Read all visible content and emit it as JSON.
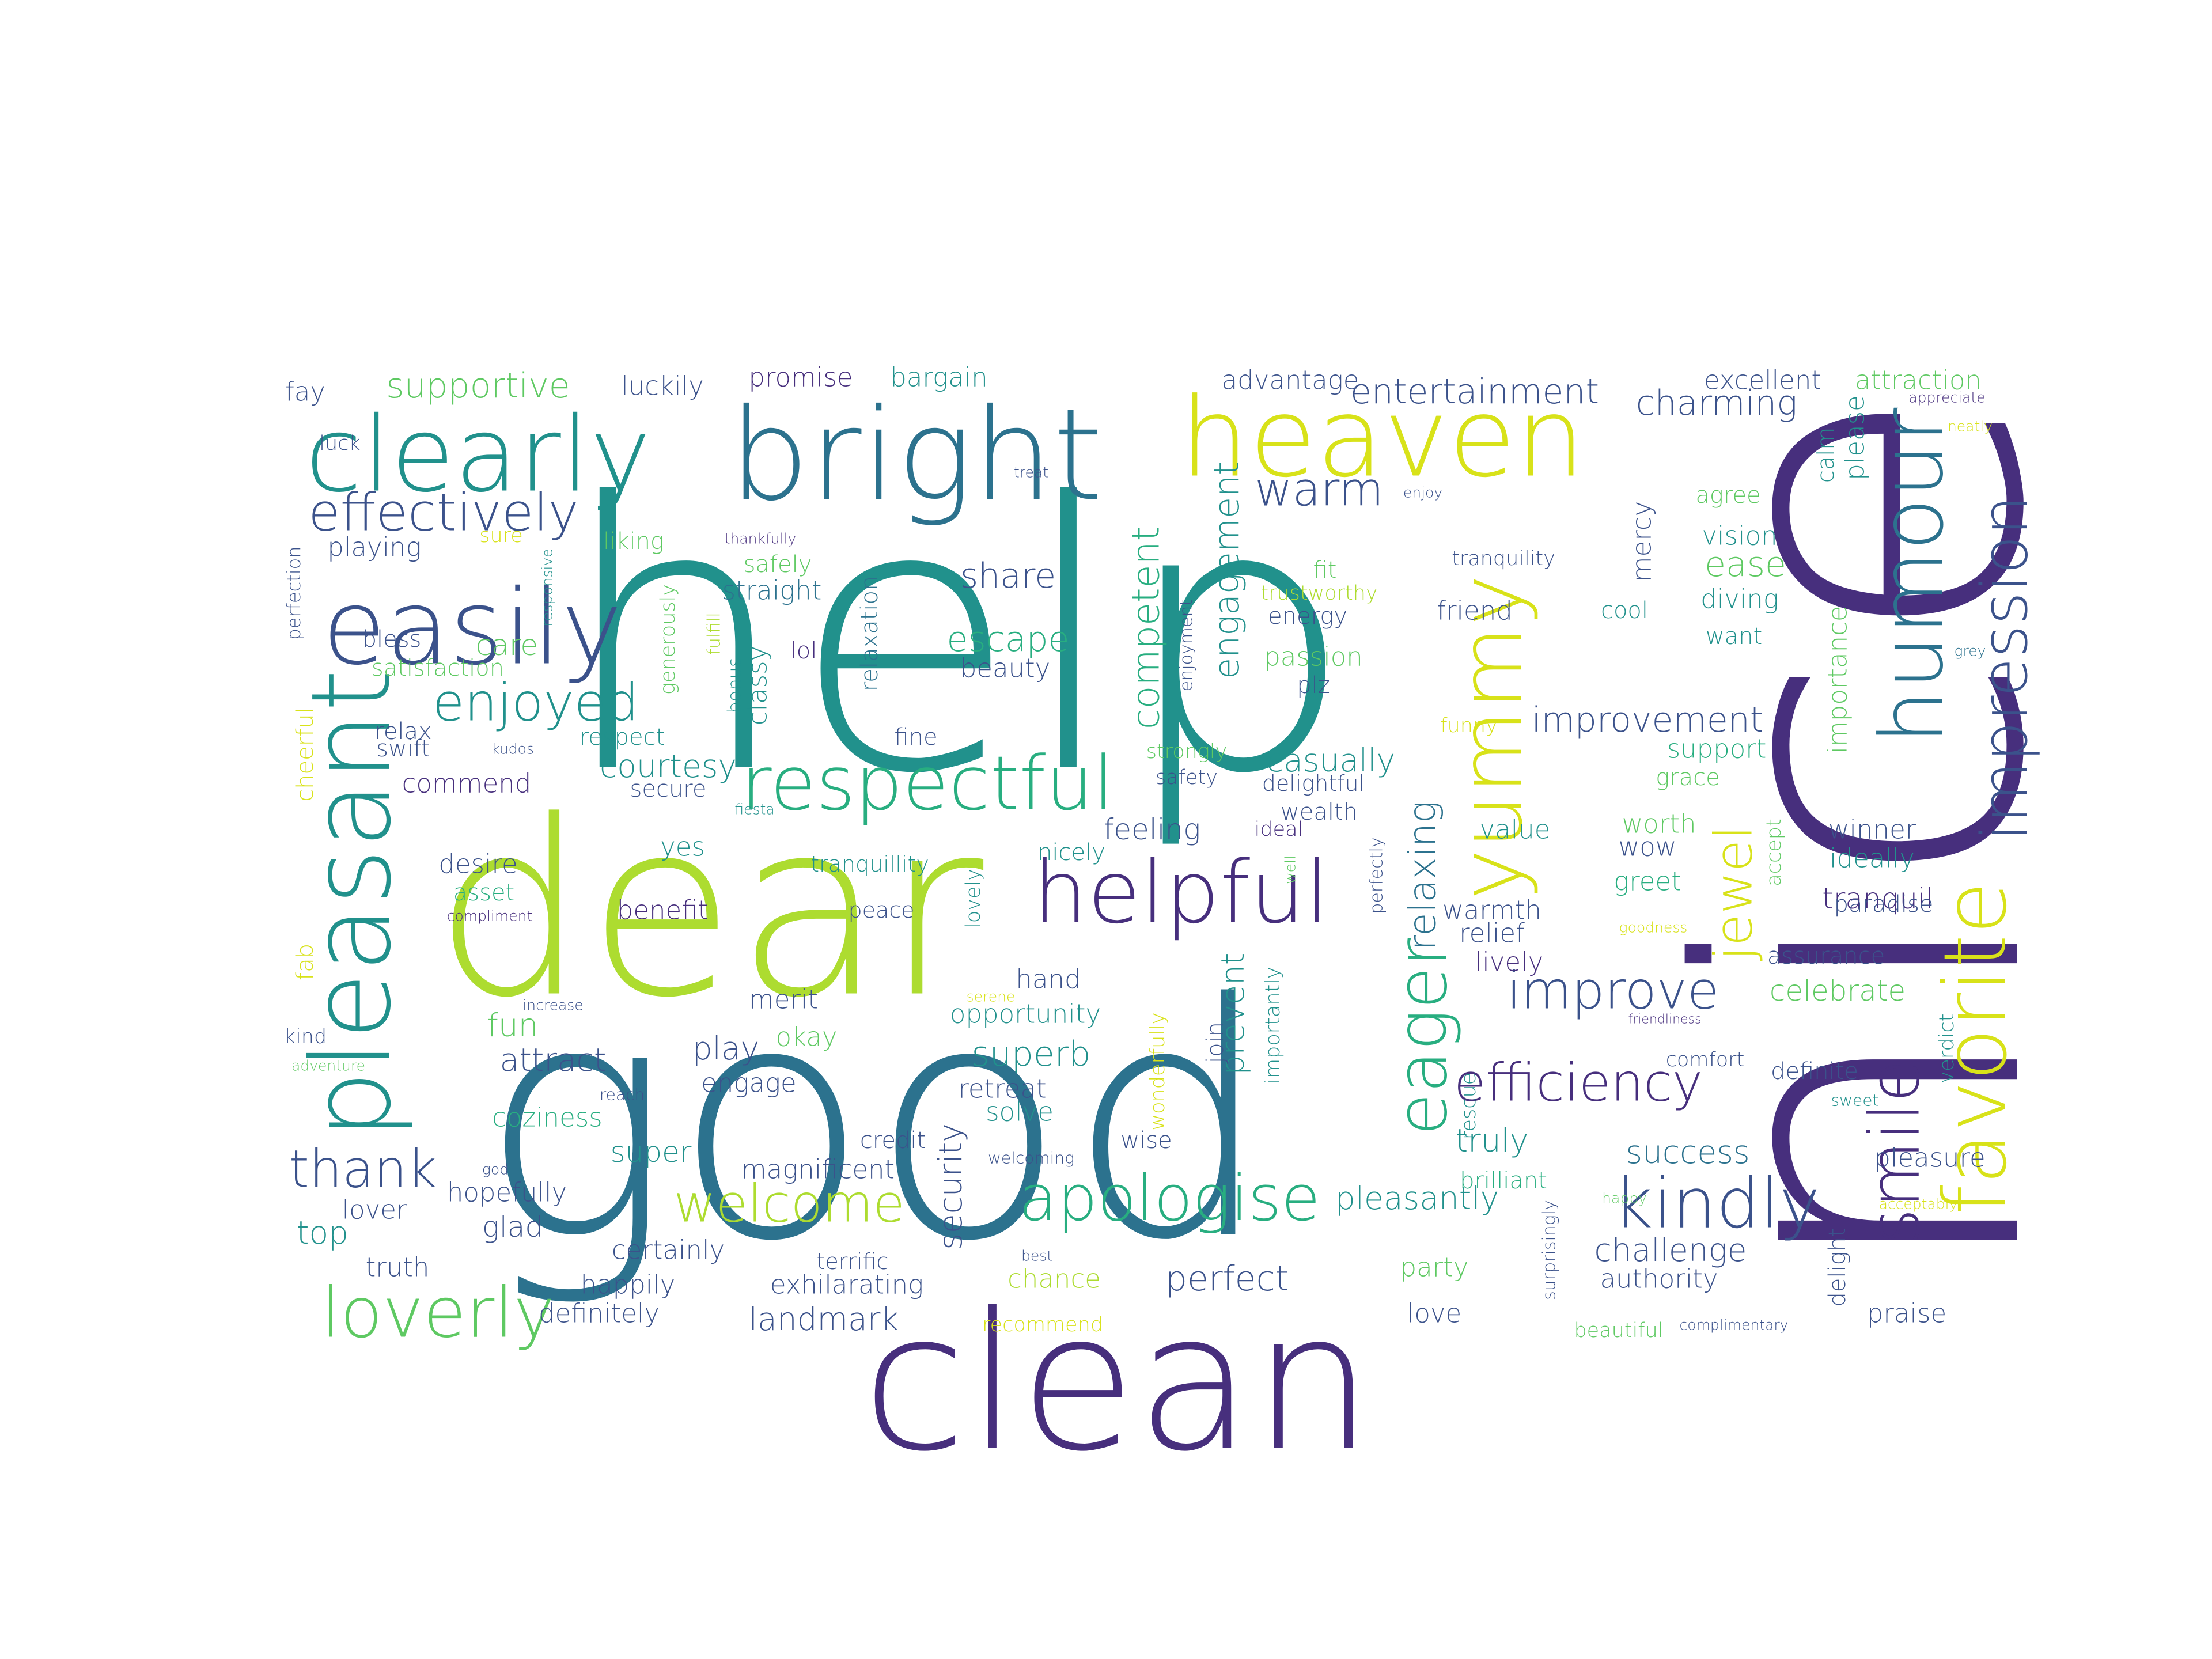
{
  "palette": {
    "purple": "#472f7d",
    "indigo": "#3b528b",
    "blue": "#2c728e",
    "teal": "#21918c",
    "sea": "#28ae80",
    "green": "#5ec962",
    "lime": "#addc30",
    "yellow": "#d8e219"
  },
  "words": [
    {
      "text": "nice",
      "color": "purple"
    },
    {
      "text": "help",
      "color": "teal"
    },
    {
      "text": "good",
      "color": "blue"
    },
    {
      "text": "dear",
      "color": "lime"
    },
    {
      "text": "clean",
      "color": "purple"
    },
    {
      "text": "bright",
      "color": "blue"
    },
    {
      "text": "heaven",
      "color": "yellow"
    },
    {
      "text": "clearly",
      "color": "teal"
    },
    {
      "text": "easily",
      "color": "indigo"
    },
    {
      "text": "pleasant",
      "color": "teal"
    },
    {
      "text": "respectful",
      "color": "sea"
    },
    {
      "text": "helpful",
      "color": "purple"
    },
    {
      "text": "yummy",
      "color": "yellow"
    },
    {
      "text": "humour",
      "color": "blue"
    },
    {
      "text": "favorite",
      "color": "yellow"
    },
    {
      "text": "impression",
      "color": "indigo"
    },
    {
      "text": "smile",
      "color": "purple"
    },
    {
      "text": "kindly",
      "color": "indigo"
    },
    {
      "text": "apologise",
      "color": "sea"
    },
    {
      "text": "loverly",
      "color": "green"
    },
    {
      "text": "efficiency",
      "color": "purple"
    },
    {
      "text": "eager",
      "color": "sea"
    },
    {
      "text": "improve",
      "color": "indigo"
    },
    {
      "text": "welcome",
      "color": "lime"
    },
    {
      "text": "effectively",
      "color": "indigo"
    },
    {
      "text": "enjoyed",
      "color": "teal"
    },
    {
      "text": "thank",
      "color": "indigo"
    },
    {
      "text": "jewel",
      "color": "yellow"
    },
    {
      "text": "warm",
      "color": "indigo"
    },
    {
      "text": "entertainment",
      "color": "indigo"
    },
    {
      "text": "supportive",
      "color": "green"
    },
    {
      "text": "charming",
      "color": "indigo"
    },
    {
      "text": "share",
      "color": "indigo"
    },
    {
      "text": "escape",
      "color": "sea"
    },
    {
      "text": "superb",
      "color": "teal"
    },
    {
      "text": "competent",
      "color": "sea"
    },
    {
      "text": "engagement",
      "color": "teal"
    },
    {
      "text": "relaxing",
      "color": "blue"
    },
    {
      "text": "courtesy",
      "color": "teal"
    },
    {
      "text": "casually",
      "color": "teal"
    },
    {
      "text": "improvement",
      "color": "indigo"
    },
    {
      "text": "ease",
      "color": "green"
    },
    {
      "text": "success",
      "color": "blue"
    },
    {
      "text": "pleasantly",
      "color": "teal"
    },
    {
      "text": "challenge",
      "color": "indigo"
    },
    {
      "text": "perfect",
      "color": "indigo"
    },
    {
      "text": "landmark",
      "color": "indigo"
    },
    {
      "text": "security",
      "color": "indigo"
    },
    {
      "text": "celebrate",
      "color": "green"
    },
    {
      "text": "fun",
      "color": "green"
    },
    {
      "text": "attract",
      "color": "indigo"
    },
    {
      "text": "glad",
      "color": "indigo"
    },
    {
      "text": "top",
      "color": "teal"
    },
    {
      "text": "playing",
      "color": "indigo"
    },
    {
      "text": "care",
      "color": "green"
    },
    {
      "text": "feeling",
      "color": "indigo"
    },
    {
      "text": "tranquil",
      "color": "purple"
    },
    {
      "text": "relief",
      "color": "indigo"
    },
    {
      "text": "truly",
      "color": "teal"
    },
    {
      "text": "prevent",
      "color": "teal"
    },
    {
      "text": "play",
      "color": "indigo"
    },
    {
      "text": "excellent",
      "color": "indigo"
    },
    {
      "text": "attraction",
      "color": "green"
    },
    {
      "text": "please",
      "color": "teal"
    },
    {
      "text": "advantage",
      "color": "indigo"
    },
    {
      "text": "promise",
      "color": "purple"
    },
    {
      "text": "bargain",
      "color": "teal"
    },
    {
      "text": "luckily",
      "color": "indigo"
    },
    {
      "text": "fay",
      "color": "indigo"
    },
    {
      "text": "luck",
      "color": "indigo"
    },
    {
      "text": "treat",
      "color": "indigo"
    },
    {
      "text": "enjoy",
      "color": "indigo"
    },
    {
      "text": "agree",
      "color": "green"
    },
    {
      "text": "vision",
      "color": "teal"
    },
    {
      "text": "mercy",
      "color": "indigo"
    },
    {
      "text": "calm",
      "color": "teal"
    },
    {
      "text": "appreciate",
      "color": "purple"
    },
    {
      "text": "neatly",
      "color": "yellow"
    },
    {
      "text": "sure",
      "color": "yellow"
    },
    {
      "text": "liking",
      "color": "green"
    },
    {
      "text": "thankfully",
      "color": "purple"
    },
    {
      "text": "safely",
      "color": "green"
    },
    {
      "text": "straight",
      "color": "blue"
    },
    {
      "text": "tranquility",
      "color": "indigo"
    },
    {
      "text": "diving",
      "color": "teal"
    },
    {
      "text": "friend",
      "color": "indigo"
    },
    {
      "text": "cool",
      "color": "teal"
    },
    {
      "text": "want",
      "color": "teal"
    },
    {
      "text": "grey",
      "color": "blue"
    },
    {
      "text": "fit",
      "color": "green"
    },
    {
      "text": "trustworthy",
      "color": "lime"
    },
    {
      "text": "energy",
      "color": "indigo"
    },
    {
      "text": "passion",
      "color": "green"
    },
    {
      "text": "plz",
      "color": "indigo"
    },
    {
      "text": "beauty",
      "color": "indigo"
    },
    {
      "text": "enjoyment",
      "color": "indigo"
    },
    {
      "text": "relaxation",
      "color": "blue"
    },
    {
      "text": "lol",
      "color": "purple"
    },
    {
      "text": "classy",
      "color": "teal"
    },
    {
      "text": "bonus",
      "color": "teal"
    },
    {
      "text": "fulfill",
      "color": "lime"
    },
    {
      "text": "generously",
      "color": "green"
    },
    {
      "text": "responsive",
      "color": "teal"
    },
    {
      "text": "perfection",
      "color": "indigo"
    },
    {
      "text": "bless",
      "color": "indigo"
    },
    {
      "text": "satisfaction",
      "color": "green"
    },
    {
      "text": "relax",
      "color": "indigo"
    },
    {
      "text": "swift",
      "color": "indigo"
    },
    {
      "text": "kudos",
      "color": "indigo"
    },
    {
      "text": "respect",
      "color": "teal"
    },
    {
      "text": "secure",
      "color": "indigo"
    },
    {
      "text": "commend",
      "color": "purple"
    },
    {
      "text": "cheerful",
      "color": "yellow"
    },
    {
      "text": "fiesta",
      "color": "teal"
    },
    {
      "text": "fine",
      "color": "indigo"
    },
    {
      "text": "strongly",
      "color": "green"
    },
    {
      "text": "safety",
      "color": "indigo"
    },
    {
      "text": "delightful",
      "color": "indigo"
    },
    {
      "text": "wealth",
      "color": "indigo"
    },
    {
      "text": "ideal",
      "color": "purple"
    },
    {
      "text": "perfectly",
      "color": "indigo"
    },
    {
      "text": "funny",
      "color": "yellow"
    },
    {
      "text": "support",
      "color": "sea"
    },
    {
      "text": "grace",
      "color": "green"
    },
    {
      "text": "worth",
      "color": "green"
    },
    {
      "text": "wow",
      "color": "indigo"
    },
    {
      "text": "greet",
      "color": "sea"
    },
    {
      "text": "value",
      "color": "teal"
    },
    {
      "text": "importance",
      "color": "green"
    },
    {
      "text": "winner",
      "color": "indigo"
    },
    {
      "text": "ideally",
      "color": "teal"
    },
    {
      "text": "accept",
      "color": "green"
    },
    {
      "text": "desire",
      "color": "indigo"
    },
    {
      "text": "asset",
      "color": "sea"
    },
    {
      "text": "compliment",
      "color": "purple"
    },
    {
      "text": "yes",
      "color": "teal"
    },
    {
      "text": "tranquillity",
      "color": "teal"
    },
    {
      "text": "benefit",
      "color": "purple"
    },
    {
      "text": "peace",
      "color": "indigo"
    },
    {
      "text": "lovely",
      "color": "teal"
    },
    {
      "text": "nicely",
      "color": "teal"
    },
    {
      "text": "well",
      "color": "green"
    },
    {
      "text": "warmth",
      "color": "indigo"
    },
    {
      "text": "paradise",
      "color": "indigo"
    },
    {
      "text": "goodness",
      "color": "yellow"
    },
    {
      "text": "lively",
      "color": "purple"
    },
    {
      "text": "assurance",
      "color": "indigo"
    },
    {
      "text": "fab",
      "color": "yellow"
    },
    {
      "text": "kind",
      "color": "indigo"
    },
    {
      "text": "increase",
      "color": "indigo"
    },
    {
      "text": "merit",
      "color": "indigo"
    },
    {
      "text": "hand",
      "color": "indigo"
    },
    {
      "text": "opportunity",
      "color": "teal"
    },
    {
      "text": "serene",
      "color": "yellow"
    },
    {
      "text": "okay",
      "color": "green"
    },
    {
      "text": "join",
      "color": "indigo"
    },
    {
      "text": "importantly",
      "color": "teal"
    },
    {
      "text": "wonderfully",
      "color": "yellow"
    },
    {
      "text": "friendliness",
      "color": "purple"
    },
    {
      "text": "comfort",
      "color": "indigo"
    },
    {
      "text": "definite",
      "color": "indigo"
    },
    {
      "text": "verdict",
      "color": "teal"
    },
    {
      "text": "sweet",
      "color": "teal"
    },
    {
      "text": "adventure",
      "color": "green"
    },
    {
      "text": "reach",
      "color": "indigo"
    },
    {
      "text": "engage",
      "color": "indigo"
    },
    {
      "text": "retreat",
      "color": "indigo"
    },
    {
      "text": "solve",
      "color": "teal"
    },
    {
      "text": "rescue",
      "color": "teal"
    },
    {
      "text": "coziness",
      "color": "sea"
    },
    {
      "text": "super",
      "color": "teal"
    },
    {
      "text": "credit",
      "color": "indigo"
    },
    {
      "text": "magnificent",
      "color": "indigo"
    },
    {
      "text": "wise",
      "color": "indigo"
    },
    {
      "text": "welcoming",
      "color": "indigo"
    },
    {
      "text": "brilliant",
      "color": "sea"
    },
    {
      "text": "pleasure",
      "color": "indigo"
    },
    {
      "text": "hopefully",
      "color": "indigo"
    },
    {
      "text": "god",
      "color": "indigo"
    },
    {
      "text": "lover",
      "color": "indigo"
    },
    {
      "text": "certainly",
      "color": "indigo"
    },
    {
      "text": "happy",
      "color": "green"
    },
    {
      "text": "acceptably",
      "color": "yellow"
    },
    {
      "text": "truth",
      "color": "indigo"
    },
    {
      "text": "happily",
      "color": "indigo"
    },
    {
      "text": "terrific",
      "color": "indigo"
    },
    {
      "text": "exhilarating",
      "color": "indigo"
    },
    {
      "text": "chance",
      "color": "lime"
    },
    {
      "text": "best",
      "color": "indigo"
    },
    {
      "text": "party",
      "color": "green"
    },
    {
      "text": "authority",
      "color": "indigo"
    },
    {
      "text": "surprisingly",
      "color": "indigo"
    },
    {
      "text": "delight",
      "color": "indigo"
    },
    {
      "text": "praise",
      "color": "indigo"
    },
    {
      "text": "definitely",
      "color": "indigo"
    },
    {
      "text": "recommend",
      "color": "yellow"
    },
    {
      "text": "love",
      "color": "indigo"
    },
    {
      "text": "beautiful",
      "color": "green"
    },
    {
      "text": "complimentary",
      "color": "indigo"
    }
  ]
}
